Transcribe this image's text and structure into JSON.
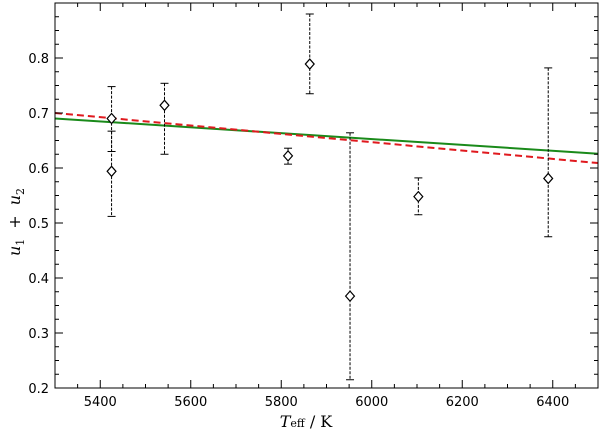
{
  "chart_data": {
    "type": "scatter",
    "xlabel": {
      "symbol": "T",
      "subscript": "eff",
      "separator": " / ",
      "unit": "K"
    },
    "ylabel": {
      "sym1": "u",
      "sub1": "1",
      "plus": "+",
      "sym2": "u",
      "sub2": "2"
    },
    "xlim": [
      5300,
      6500
    ],
    "ylim": [
      0.2,
      0.9
    ],
    "xticks": [
      5400,
      5600,
      5800,
      6000,
      6200,
      6400
    ],
    "yticks": [
      0.2,
      0.3,
      0.4,
      0.5,
      0.6,
      0.7,
      0.8
    ],
    "xtick_labels": [
      "5400",
      "5600",
      "5800",
      "6000",
      "6200",
      "6400"
    ],
    "ytick_labels": [
      "0.2",
      "0.3",
      "0.4",
      "0.5",
      "0.6",
      "0.7",
      "0.8"
    ],
    "grid": false,
    "points": [
      {
        "x": 5425,
        "y": 0.69,
        "ylo": 0.63,
        "yhi": 0.748
      },
      {
        "x": 5425,
        "y": 0.594,
        "ylo": 0.512,
        "yhi": 0.667
      },
      {
        "x": 5542,
        "y": 0.714,
        "ylo": 0.625,
        "yhi": 0.754
      },
      {
        "x": 5815,
        "y": 0.622,
        "ylo": 0.607,
        "yhi": 0.636
      },
      {
        "x": 5863,
        "y": 0.789,
        "ylo": 0.735,
        "yhi": 0.88
      },
      {
        "x": 5952,
        "y": 0.367,
        "ylo": 0.215,
        "yhi": 0.664
      },
      {
        "x": 6103,
        "y": 0.548,
        "ylo": 0.515,
        "yhi": 0.582
      },
      {
        "x": 6390,
        "y": 0.581,
        "ylo": 0.475,
        "yhi": 0.782
      }
    ],
    "lines": [
      {
        "style": "solid",
        "color": "#1a8a1a",
        "x": [
          5300,
          6500
        ],
        "y": [
          0.69,
          0.626
        ]
      },
      {
        "style": "dashed",
        "color": "#e0191e",
        "x": [
          5300,
          6500
        ],
        "y": [
          0.7,
          0.609
        ]
      }
    ]
  }
}
